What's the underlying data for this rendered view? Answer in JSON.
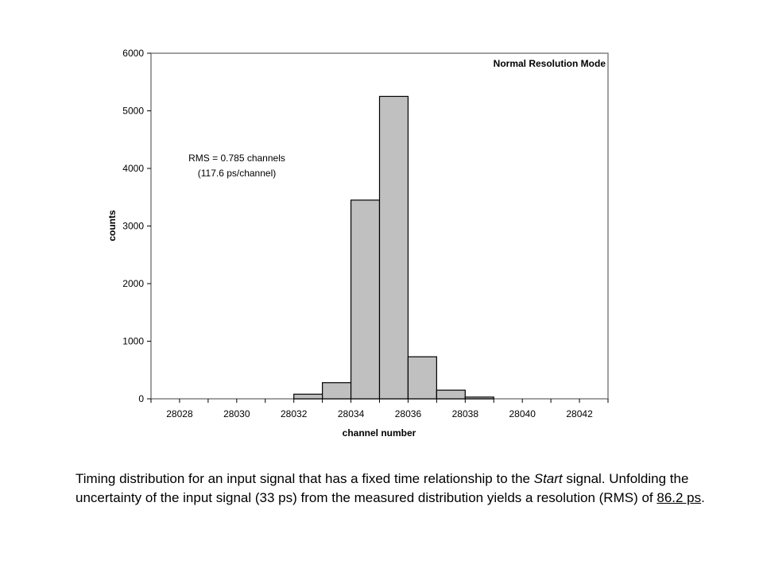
{
  "chart_data": {
    "type": "bar",
    "title": "",
    "xlabel": "channel number",
    "ylabel": "counts",
    "mode_label": "Normal Resolution Mode",
    "annotation": [
      "RMS = 0.785 channels",
      "(117.6 ps/channel)"
    ],
    "xlim": [
      28027,
      28043
    ],
    "ylim": [
      0,
      6000
    ],
    "x_ticks": [
      "28028",
      "28030",
      "28032",
      "28034",
      "28036",
      "28038",
      "28040",
      "28042"
    ],
    "y_ticks": [
      "0",
      "1000",
      "2000",
      "3000",
      "4000",
      "5000",
      "6000"
    ],
    "bins": [
      28032,
      28033,
      28034,
      28035,
      28036,
      28037,
      28038
    ],
    "values": [
      80,
      280,
      3450,
      5250,
      730,
      150,
      30
    ],
    "bar_color": "#c0c0c0",
    "grid": false,
    "legend": "none"
  },
  "caption": {
    "part1": "Timing distribution for an input signal that has a fixed time relationship to the ",
    "italic": "Start",
    "part2": " signal.  Unfolding the uncertainty of the input signal (33 ps) from the measured distribution yields a resolution (RMS) of ",
    "underlined": "86.2 ps",
    "part3": "."
  }
}
